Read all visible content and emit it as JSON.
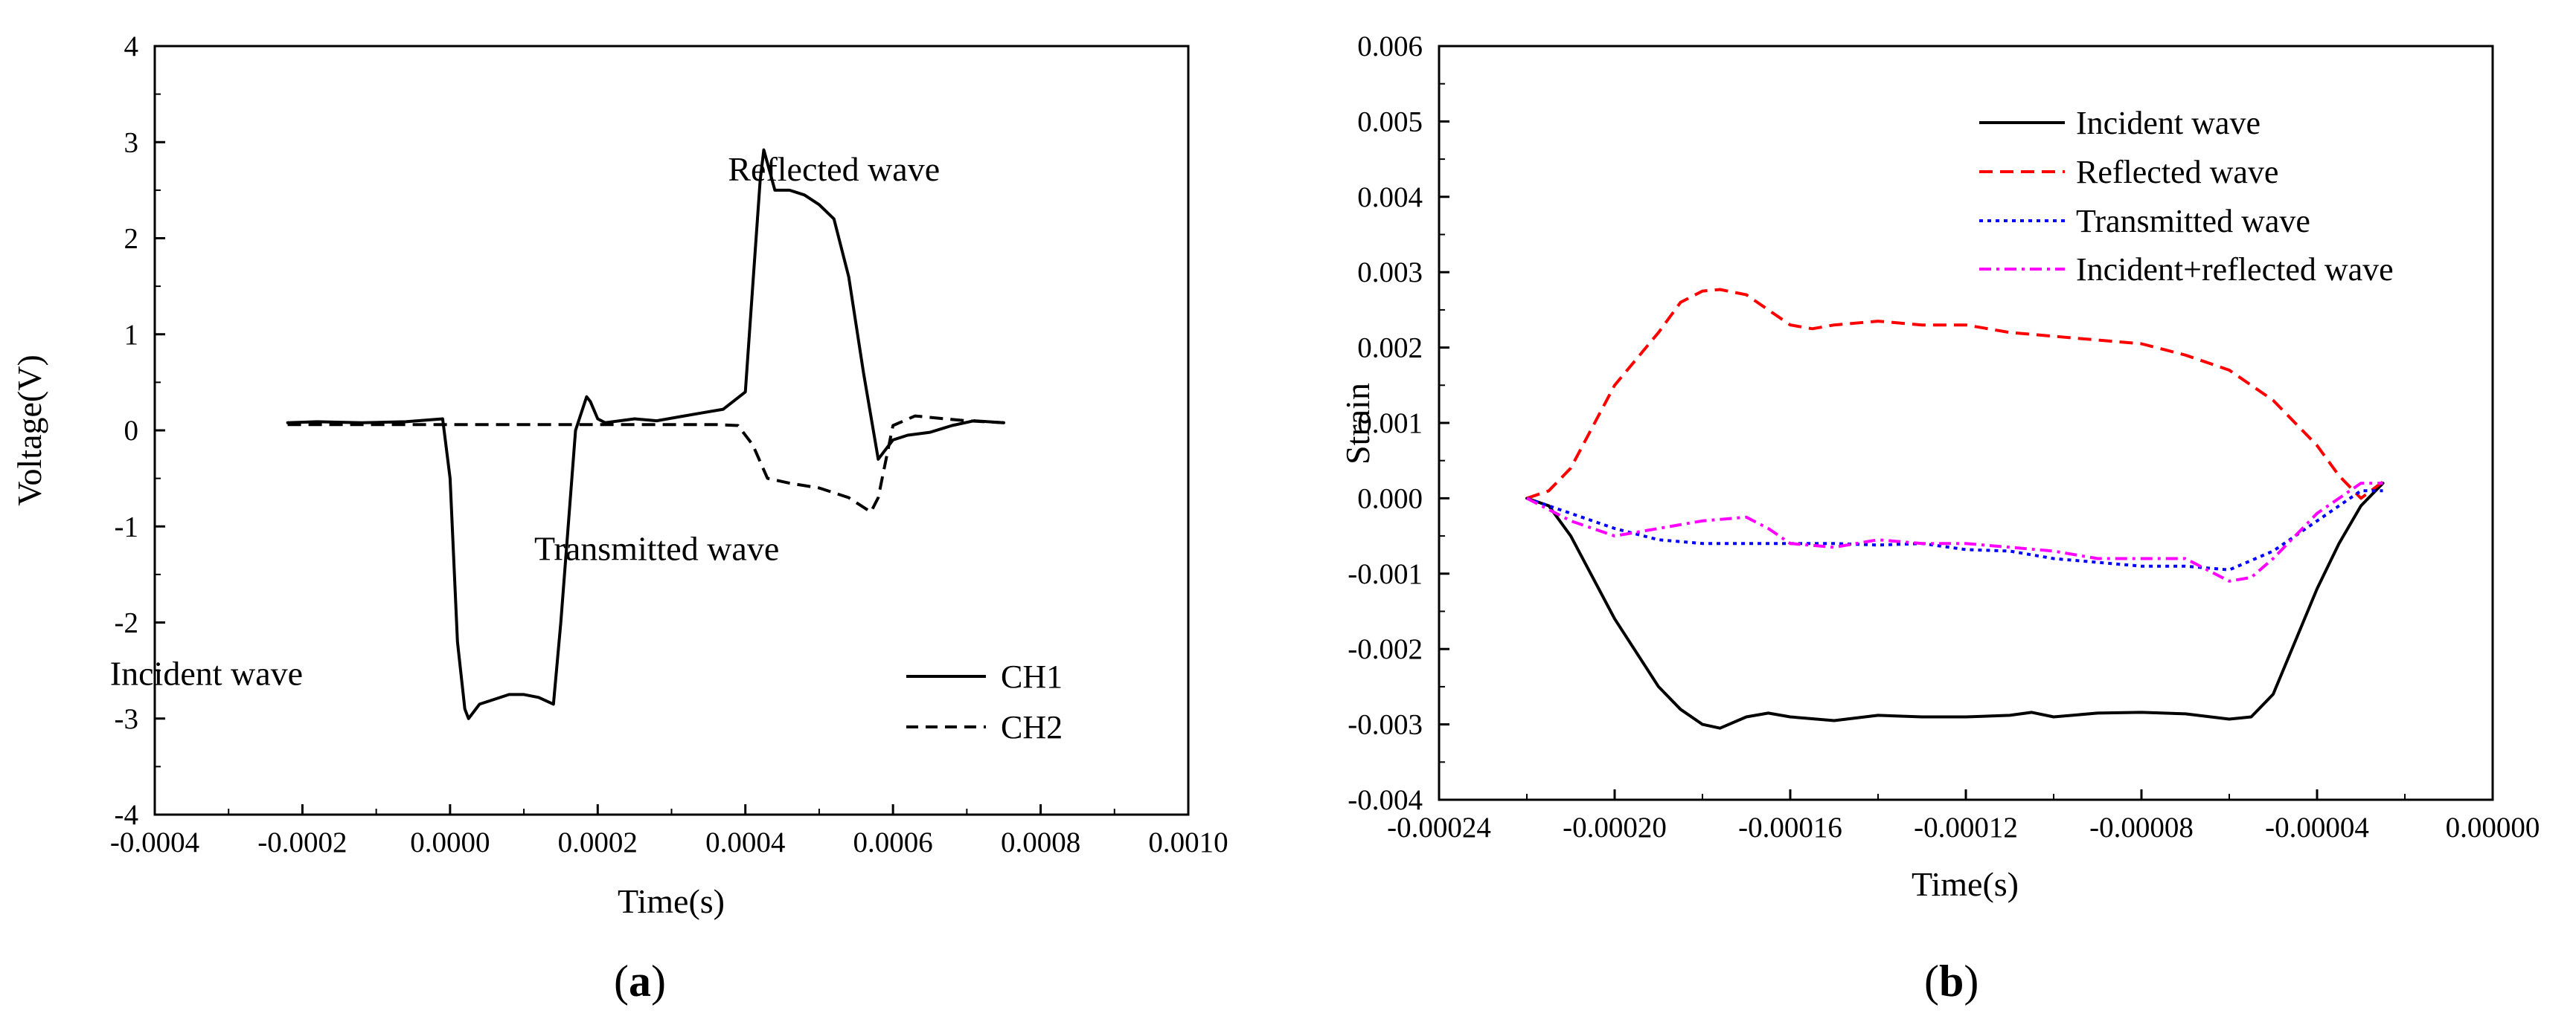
{
  "chart_data": [
    {
      "type": "line",
      "panel_label": "(a)",
      "title": "",
      "xlabel": "Time(s)",
      "ylabel": "Voltage(V)",
      "xlim": [
        -0.0004,
        0.001
      ],
      "ylim": [
        -4,
        4
      ],
      "xticks": [
        -0.0004,
        -0.0002,
        0.0,
        0.0002,
        0.0004,
        0.0006,
        0.0008,
        0.001
      ],
      "xtick_labels": [
        "-0.0004",
        "-0.0002",
        "0.0000",
        "0.0002",
        "0.0004",
        "0.0006",
        "0.0008",
        "0.0010"
      ],
      "yticks": [
        -4,
        -3,
        -2,
        -1,
        0,
        1,
        2,
        3,
        4
      ],
      "ytick_labels": [
        "-4",
        "-3",
        "-2",
        "-1",
        "0",
        "1",
        "2",
        "3",
        "4"
      ],
      "grid": false,
      "legend_position": "bottom-right",
      "series": [
        {
          "name": "CH1",
          "color": "#000000",
          "dash": "solid",
          "x": [
            -0.00022,
            -0.00018,
            -0.00012,
            -6e-05,
            -1e-05,
            0.0,
            1e-05,
            2e-05,
            2.5e-05,
            4e-05,
            6e-05,
            8e-05,
            0.0001,
            0.00012,
            0.00014,
            0.00015,
            0.00017,
            0.000185,
            0.00019,
            0.0002,
            0.00021,
            0.00023,
            0.00025,
            0.00028,
            0.00031,
            0.00034,
            0.00037,
            0.0004,
            0.00041,
            0.00042,
            0.000425,
            0.00044,
            0.00046,
            0.00048,
            0.0005,
            0.00052,
            0.00054,
            0.00056,
            0.00058,
            0.0006,
            0.00062,
            0.00065,
            0.00068,
            0.00071,
            0.00075
          ],
          "y": [
            0.08,
            0.09,
            0.08,
            0.09,
            0.12,
            -0.5,
            -2.2,
            -2.9,
            -3.0,
            -2.85,
            -2.8,
            -2.75,
            -2.75,
            -2.78,
            -2.85,
            -2.0,
            0.0,
            0.35,
            0.3,
            0.12,
            0.08,
            0.1,
            0.12,
            0.1,
            0.14,
            0.18,
            0.22,
            0.4,
            1.5,
            2.6,
            2.92,
            2.5,
            2.5,
            2.45,
            2.35,
            2.2,
            1.6,
            0.6,
            -0.3,
            -0.1,
            -0.05,
            -0.02,
            0.05,
            0.1,
            0.08
          ]
        },
        {
          "name": "CH2",
          "color": "#000000",
          "dash": "dashed",
          "x": [
            -0.00022,
            -0.0001,
            0.0,
            0.0001,
            0.0002,
            0.0003,
            0.00036,
            0.00039,
            0.00041,
            0.00043,
            0.00046,
            0.0005,
            0.00054,
            0.00057,
            0.00058,
            0.0006,
            0.00063,
            0.00067,
            0.0007,
            0.00075
          ],
          "y": [
            0.06,
            0.06,
            0.06,
            0.06,
            0.06,
            0.06,
            0.06,
            0.05,
            -0.15,
            -0.5,
            -0.55,
            -0.6,
            -0.7,
            -0.85,
            -0.7,
            0.05,
            0.15,
            0.12,
            0.1,
            0.08
          ]
        }
      ],
      "annotations": [
        {
          "text": "Reflected wave",
          "x": 0.00052,
          "y": 2.6
        },
        {
          "text": "Transmitted wave",
          "x": 0.00028,
          "y": -1.35
        },
        {
          "text": "Incident wave",
          "x": -0.00033,
          "y": -2.65
        }
      ]
    },
    {
      "type": "line",
      "panel_label": "(b)",
      "title": "",
      "xlabel": "Time(s)",
      "ylabel": "Strain",
      "xlim": [
        -0.00024,
        0.0
      ],
      "ylim": [
        -0.004,
        0.006
      ],
      "xticks": [
        -0.00024,
        -0.0002,
        -0.00016,
        -0.00012,
        -8e-05,
        -4e-05,
        0.0
      ],
      "xtick_labels": [
        "-0.00024",
        "-0.00020",
        "-0.00016",
        "-0.00012",
        "-0.00008",
        "-0.00004",
        "0.00000"
      ],
      "yticks": [
        -0.004,
        -0.003,
        -0.002,
        -0.001,
        0.0,
        0.001,
        0.002,
        0.003,
        0.004,
        0.005,
        0.006
      ],
      "ytick_labels": [
        "-0.004",
        "-0.003",
        "-0.002",
        "-0.001",
        "0.000",
        "0.001",
        "0.002",
        "0.003",
        "0.004",
        "0.005",
        "0.006"
      ],
      "grid": false,
      "legend_position": "top-right",
      "series": [
        {
          "name": "Incident wave",
          "color": "#000000",
          "dash": "solid",
          "x": [
            -0.00022,
            -0.000215,
            -0.00021,
            -0.0002,
            -0.00019,
            -0.000185,
            -0.00018,
            -0.000176,
            -0.00017,
            -0.000165,
            -0.00016,
            -0.00015,
            -0.00014,
            -0.00013,
            -0.00012,
            -0.00011,
            -0.000105,
            -0.0001,
            -9e-05,
            -8e-05,
            -7e-05,
            -6e-05,
            -5.5e-05,
            -5e-05,
            -4.5e-05,
            -4e-05,
            -3.5e-05,
            -3e-05,
            -2.5e-05
          ],
          "y": [
            0.0,
            -0.0001,
            -0.0005,
            -0.0016,
            -0.0025,
            -0.0028,
            -0.003,
            -0.00305,
            -0.0029,
            -0.00285,
            -0.0029,
            -0.00295,
            -0.00288,
            -0.0029,
            -0.0029,
            -0.00288,
            -0.00284,
            -0.0029,
            -0.00285,
            -0.00284,
            -0.00286,
            -0.00293,
            -0.0029,
            -0.0026,
            -0.0019,
            -0.0012,
            -0.0006,
            -0.0001,
            0.0002
          ]
        },
        {
          "name": "Reflected wave",
          "color": "#ff0000",
          "dash": "dashed",
          "x": [
            -0.00022,
            -0.000215,
            -0.00021,
            -0.0002,
            -0.00019,
            -0.000185,
            -0.00018,
            -0.000176,
            -0.00017,
            -0.000165,
            -0.00016,
            -0.000155,
            -0.00015,
            -0.00014,
            -0.00013,
            -0.00012,
            -0.00011,
            -0.0001,
            -9e-05,
            -8e-05,
            -7e-05,
            -6e-05,
            -5e-05,
            -4e-05,
            -3.5e-05,
            -3e-05,
            -2.5e-05
          ],
          "y": [
            0.0,
            0.0001,
            0.0004,
            0.0015,
            0.0022,
            0.0026,
            0.00275,
            0.00277,
            0.0027,
            0.0025,
            0.0023,
            0.00225,
            0.0023,
            0.00235,
            0.0023,
            0.0023,
            0.0022,
            0.00215,
            0.0021,
            0.00205,
            0.0019,
            0.0017,
            0.0013,
            0.0007,
            0.0003,
            0.0,
            0.00022
          ]
        },
        {
          "name": "Transmitted wave",
          "color": "#0000ff",
          "dash": "dotted",
          "x": [
            -0.00022,
            -0.00021,
            -0.0002,
            -0.00019,
            -0.00018,
            -0.00017,
            -0.00016,
            -0.00015,
            -0.00014,
            -0.00013,
            -0.00012,
            -0.00011,
            -0.0001,
            -9e-05,
            -8e-05,
            -7e-05,
            -6e-05,
            -5e-05,
            -4e-05,
            -3e-05,
            -2.5e-05
          ],
          "y": [
            0.0,
            -0.0002,
            -0.0004,
            -0.00055,
            -0.0006,
            -0.0006,
            -0.0006,
            -0.0006,
            -0.00062,
            -0.0006,
            -0.00068,
            -0.0007,
            -0.0008,
            -0.00085,
            -0.0009,
            -0.0009,
            -0.00095,
            -0.0007,
            -0.0003,
            0.0001,
            0.0001
          ]
        },
        {
          "name": "Incident+reflected wave",
          "color": "#ff00ff",
          "dash": "dashdot",
          "x": [
            -0.00022,
            -0.00021,
            -0.0002,
            -0.00019,
            -0.00018,
            -0.00017,
            -0.000165,
            -0.00016,
            -0.00015,
            -0.00014,
            -0.00013,
            -0.00012,
            -0.00011,
            -0.0001,
            -9e-05,
            -8e-05,
            -7e-05,
            -6e-05,
            -5.5e-05,
            -5e-05,
            -4e-05,
            -3e-05,
            -2.5e-05
          ],
          "y": [
            0.0,
            -0.0003,
            -0.0005,
            -0.0004,
            -0.0003,
            -0.00025,
            -0.0004,
            -0.0006,
            -0.00065,
            -0.00055,
            -0.0006,
            -0.0006,
            -0.00065,
            -0.0007,
            -0.0008,
            -0.0008,
            -0.0008,
            -0.0011,
            -0.00105,
            -0.0008,
            -0.0002,
            0.0002,
            0.0002
          ]
        }
      ]
    }
  ]
}
